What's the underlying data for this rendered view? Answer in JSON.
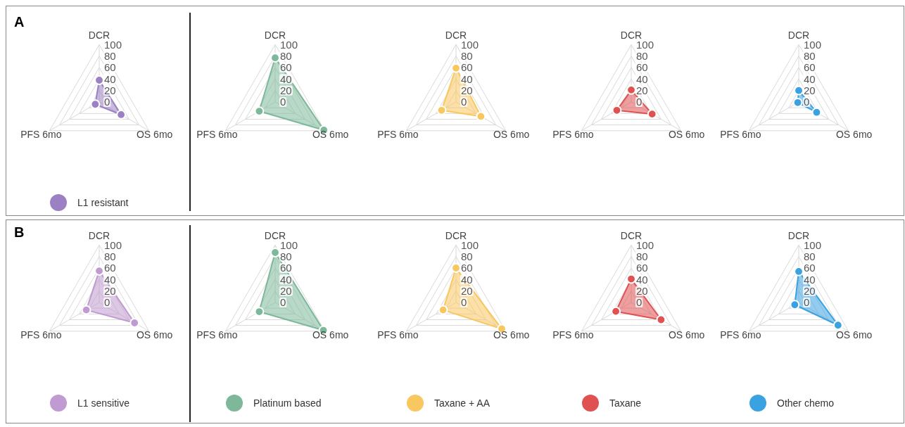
{
  "chart_data": [
    {
      "type": "radar",
      "title": "A",
      "categories": [
        "DCR",
        "OS 6mo",
        "PFS 6mo"
      ],
      "ylim": [
        0,
        100
      ],
      "yticks": [
        0,
        20,
        40,
        60,
        80,
        100
      ],
      "grid": true,
      "marker": "circle",
      "legend": "bottom",
      "series": [
        {
          "name": "L1 resistant",
          "color": "#9b80c4",
          "values": [
            38,
            44,
            8
          ]
        }
      ]
    },
    {
      "type": "radar",
      "categories": [
        "DCR",
        "OS 6mo",
        "PFS 6mo"
      ],
      "ylim": [
        0,
        100
      ],
      "yticks": [
        0,
        20,
        40,
        60,
        80,
        100
      ],
      "grid": true,
      "marker": "circle",
      "series": [
        {
          "color": "#7db89b",
          "values": [
            77,
            98,
            32
          ]
        }
      ]
    },
    {
      "type": "radar",
      "categories": [
        "DCR",
        "OS 6mo",
        "PFS 6mo"
      ],
      "ylim": [
        0,
        100
      ],
      "yticks": [
        0,
        20,
        40,
        60,
        80,
        100
      ],
      "grid": true,
      "marker": "circle",
      "series": [
        {
          "color": "#f9c760",
          "values": [
            59,
            50,
            29
          ]
        }
      ]
    },
    {
      "type": "radar",
      "categories": [
        "DCR",
        "OS 6mo",
        "PFS 6mo"
      ],
      "ylim": [
        0,
        100
      ],
      "yticks": [
        0,
        20,
        40,
        60,
        80,
        100
      ],
      "grid": true,
      "marker": "circle",
      "series": [
        {
          "color": "#e05252",
          "values": [
            21,
            42,
            29
          ]
        }
      ]
    },
    {
      "type": "radar",
      "categories": [
        "DCR",
        "OS 6mo",
        "PFS 6mo"
      ],
      "ylim": [
        0,
        100
      ],
      "yticks": [
        0,
        20,
        40,
        60,
        80,
        100
      ],
      "grid": true,
      "marker": "circle",
      "series": [
        {
          "color": "#3aa2e0",
          "values": [
            20,
            36,
            2
          ]
        }
      ]
    },
    {
      "type": "radar",
      "title": "B",
      "categories": [
        "DCR",
        "OS 6mo",
        "PFS 6mo"
      ],
      "ylim": [
        0,
        100
      ],
      "yticks": [
        0,
        20,
        40,
        60,
        80,
        100
      ],
      "grid": true,
      "marker": "circle",
      "legend": "bottom",
      "series": [
        {
          "name": "L1 sensitive",
          "color": "#c09ad0",
          "values": [
            55,
            71,
            26
          ]
        }
      ]
    },
    {
      "type": "radar",
      "categories": [
        "DCR",
        "OS 6mo",
        "PFS 6mo"
      ],
      "ylim": [
        0,
        100
      ],
      "yticks": [
        0,
        20,
        40,
        60,
        80,
        100
      ],
      "grid": true,
      "marker": "circle",
      "legend": "bottom",
      "series": [
        {
          "name": "Platinum based",
          "color": "#7db89b",
          "values": [
            87,
            97,
            32
          ]
        }
      ]
    },
    {
      "type": "radar",
      "categories": [
        "DCR",
        "OS 6mo",
        "PFS 6mo"
      ],
      "ylim": [
        0,
        100
      ],
      "yticks": [
        0,
        20,
        40,
        60,
        80,
        100
      ],
      "grid": true,
      "marker": "circle",
      "legend": "bottom",
      "series": [
        {
          "name": "Taxane + AA",
          "color": "#f9c760",
          "values": [
            60,
            92,
            26
          ]
        }
      ]
    },
    {
      "type": "radar",
      "categories": [
        "DCR",
        "OS 6mo",
        "PFS 6mo"
      ],
      "ylim": [
        0,
        100
      ],
      "yticks": [
        0,
        20,
        40,
        60,
        80,
        100
      ],
      "grid": true,
      "marker": "circle",
      "legend": "bottom",
      "series": [
        {
          "name": "Taxane",
          "color": "#e05252",
          "values": [
            41,
            60,
            31
          ]
        }
      ]
    },
    {
      "type": "radar",
      "categories": [
        "DCR",
        "OS 6mo",
        "PFS 6mo"
      ],
      "ylim": [
        0,
        100
      ],
      "yticks": [
        0,
        20,
        40,
        60,
        80,
        100
      ],
      "grid": true,
      "marker": "circle",
      "legend": "bottom",
      "series": [
        {
          "name": "Other chemo",
          "color": "#3aa2e0",
          "values": [
            54,
            79,
            8
          ]
        }
      ]
    }
  ]
}
